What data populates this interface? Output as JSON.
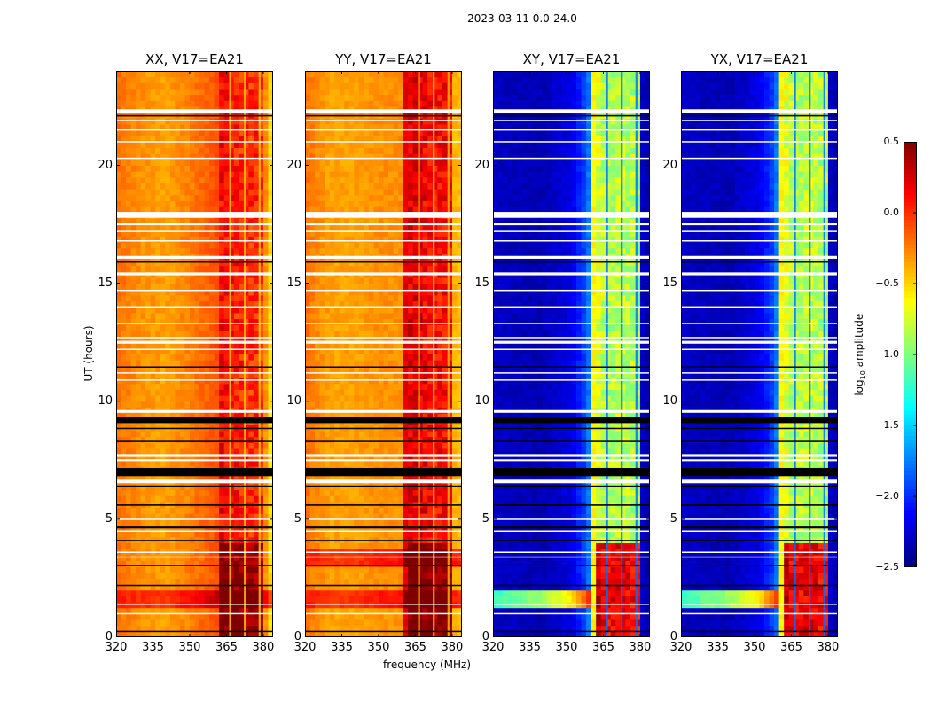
{
  "chart_data": {
    "type": "heatmap",
    "title": "2023-03-11 0.0-24.0",
    "xlabel": "frequency (MHz)",
    "ylabel": "UT (hours)",
    "xlim": [
      320,
      384
    ],
    "ylim": [
      0,
      24
    ],
    "xticks": [
      320,
      335,
      350,
      365,
      380
    ],
    "yticks": [
      0,
      5,
      10,
      15,
      20
    ],
    "colorbar": {
      "label": "log10 amplitude",
      "label_main": "log",
      "label_sub": "10",
      "label_rest": " amplitude",
      "vmin": -2.5,
      "vmax": 0.5,
      "ticks": [
        0.5,
        0.0,
        -0.5,
        -1.0,
        -1.5,
        -2.0,
        -2.5
      ],
      "tick_labels": [
        "0.5",
        "0.0",
        "−0.5",
        "−1.0",
        "−1.5",
        "−2.0",
        "−2.5"
      ],
      "colormap": "jet"
    },
    "rfi_band_mhz": [
      361,
      381
    ],
    "panels": [
      {
        "title": "XX, V17=EA21",
        "profile": [
          [
            320,
            -0.2
          ],
          [
            330,
            -0.3
          ],
          [
            340,
            -0.35
          ],
          [
            350,
            -0.25
          ],
          [
            358,
            -0.15
          ],
          [
            361,
            -0.1
          ],
          [
            362,
            0.15
          ],
          [
            366,
            0.1
          ],
          [
            372,
            0.0
          ],
          [
            380,
            0.0
          ],
          [
            381,
            -0.3
          ],
          [
            384,
            -0.65
          ]
        ],
        "band_boost": [
          [
            0,
            3.9,
            0.4
          ]
        ],
        "broadband": [
          [
            1.2,
            1.9,
            0.45,
            384
          ]
        ],
        "gaps": [
          [
            366.5,
            -0.45
          ],
          [
            372.5,
            -0.45
          ],
          [
            378.5,
            -0.45
          ]
        ]
      },
      {
        "title": "YY, V17=EA21",
        "profile": [
          [
            320,
            -0.2
          ],
          [
            330,
            -0.35
          ],
          [
            340,
            -0.35
          ],
          [
            350,
            -0.3
          ],
          [
            359,
            -0.3
          ],
          [
            361,
            0.2
          ],
          [
            366,
            0.2
          ],
          [
            372,
            0.1
          ],
          [
            380,
            0.1
          ],
          [
            381,
            -0.4
          ],
          [
            384,
            -0.45
          ]
        ],
        "band_boost": [
          [
            0,
            3.9,
            0.35
          ]
        ],
        "broadband": [
          [
            1.2,
            1.9,
            0.45,
            384
          ],
          [
            2.9,
            3.8,
            0.45,
            384
          ]
        ],
        "gaps": [
          [
            366.5,
            -0.4
          ],
          [
            372.5,
            -0.4
          ],
          [
            378.5,
            -0.4
          ]
        ]
      },
      {
        "title": "XY, V17=EA21",
        "profile": [
          [
            320,
            -2.3
          ],
          [
            340,
            -2.35
          ],
          [
            352,
            -2.2
          ],
          [
            358,
            -1.9
          ],
          [
            360.5,
            -1.6
          ],
          [
            361,
            -0.6
          ],
          [
            366,
            -0.9
          ],
          [
            372,
            -0.8
          ],
          [
            380,
            -0.9
          ],
          [
            381,
            -2.3
          ],
          [
            384,
            -2.4
          ]
        ],
        "band_boost": [
          [
            0,
            3.9,
            1.0
          ]
        ],
        "broadband": [
          [
            1.2,
            1.9,
            1.8,
            361
          ]
        ],
        "gaps": [
          [
            366.5,
            -1.8
          ],
          [
            372.5,
            -1.8
          ],
          [
            378.5,
            -1.8
          ]
        ]
      },
      {
        "title": "YX, V17=EA21",
        "profile": [
          [
            320,
            -2.3
          ],
          [
            340,
            -2.35
          ],
          [
            352,
            -2.2
          ],
          [
            358,
            -1.9
          ],
          [
            360.5,
            -1.6
          ],
          [
            361,
            -0.6
          ],
          [
            366,
            -0.9
          ],
          [
            372,
            -0.8
          ],
          [
            380,
            -0.9
          ],
          [
            381,
            -2.3
          ],
          [
            384,
            -2.4
          ]
        ],
        "band_boost": [
          [
            0,
            3.9,
            1.0
          ]
        ],
        "broadband": [
          [
            1.2,
            1.9,
            1.8,
            361
          ]
        ],
        "gaps": [
          [
            366.5,
            -1.8
          ],
          [
            372.5,
            -1.8
          ],
          [
            378.5,
            -1.8
          ]
        ]
      }
    ],
    "flagged_white_hours": [
      [
        22.3,
        0.15
      ],
      [
        21.9,
        0.05
      ],
      [
        21.5,
        0.05
      ],
      [
        21.0,
        0.05
      ],
      [
        20.3,
        0.05
      ],
      [
        17.9,
        0.25
      ],
      [
        17.5,
        0.08
      ],
      [
        17.2,
        0.05
      ],
      [
        16.8,
        0.05
      ],
      [
        16.1,
        0.12
      ],
      [
        15.4,
        0.12
      ],
      [
        14.7,
        0.05
      ],
      [
        14.0,
        0.05
      ],
      [
        13.3,
        0.05
      ],
      [
        12.7,
        0.05
      ],
      [
        12.5,
        0.12
      ],
      [
        12.2,
        0.05
      ],
      [
        11.2,
        0.05
      ],
      [
        10.9,
        0.05
      ],
      [
        9.6,
        0.05
      ],
      [
        9.55,
        0.08
      ],
      [
        7.7,
        0.12
      ],
      [
        7.5,
        0.08
      ],
      [
        6.6,
        0.15
      ],
      [
        5.0,
        0.05
      ],
      [
        4.5,
        0.05
      ],
      [
        3.6,
        0.05
      ],
      [
        3.4,
        0.05
      ],
      [
        1.4,
        0.05
      ],
      [
        1.0,
        0.05
      ]
    ],
    "flagged_black_hours": [
      [
        22.1,
        0.06
      ],
      [
        15.9,
        0.06
      ],
      [
        11.45,
        0.05
      ],
      [
        9.2,
        0.25
      ],
      [
        8.85,
        0.05
      ],
      [
        8.3,
        0.05
      ],
      [
        7.0,
        0.35
      ],
      [
        6.4,
        0.06
      ],
      [
        5.6,
        0.06
      ],
      [
        4.65,
        0.08
      ],
      [
        4.1,
        0.05
      ],
      [
        2.2,
        0.05
      ],
      [
        3.05,
        0.04
      ],
      [
        0.25,
        0.05
      ]
    ]
  }
}
